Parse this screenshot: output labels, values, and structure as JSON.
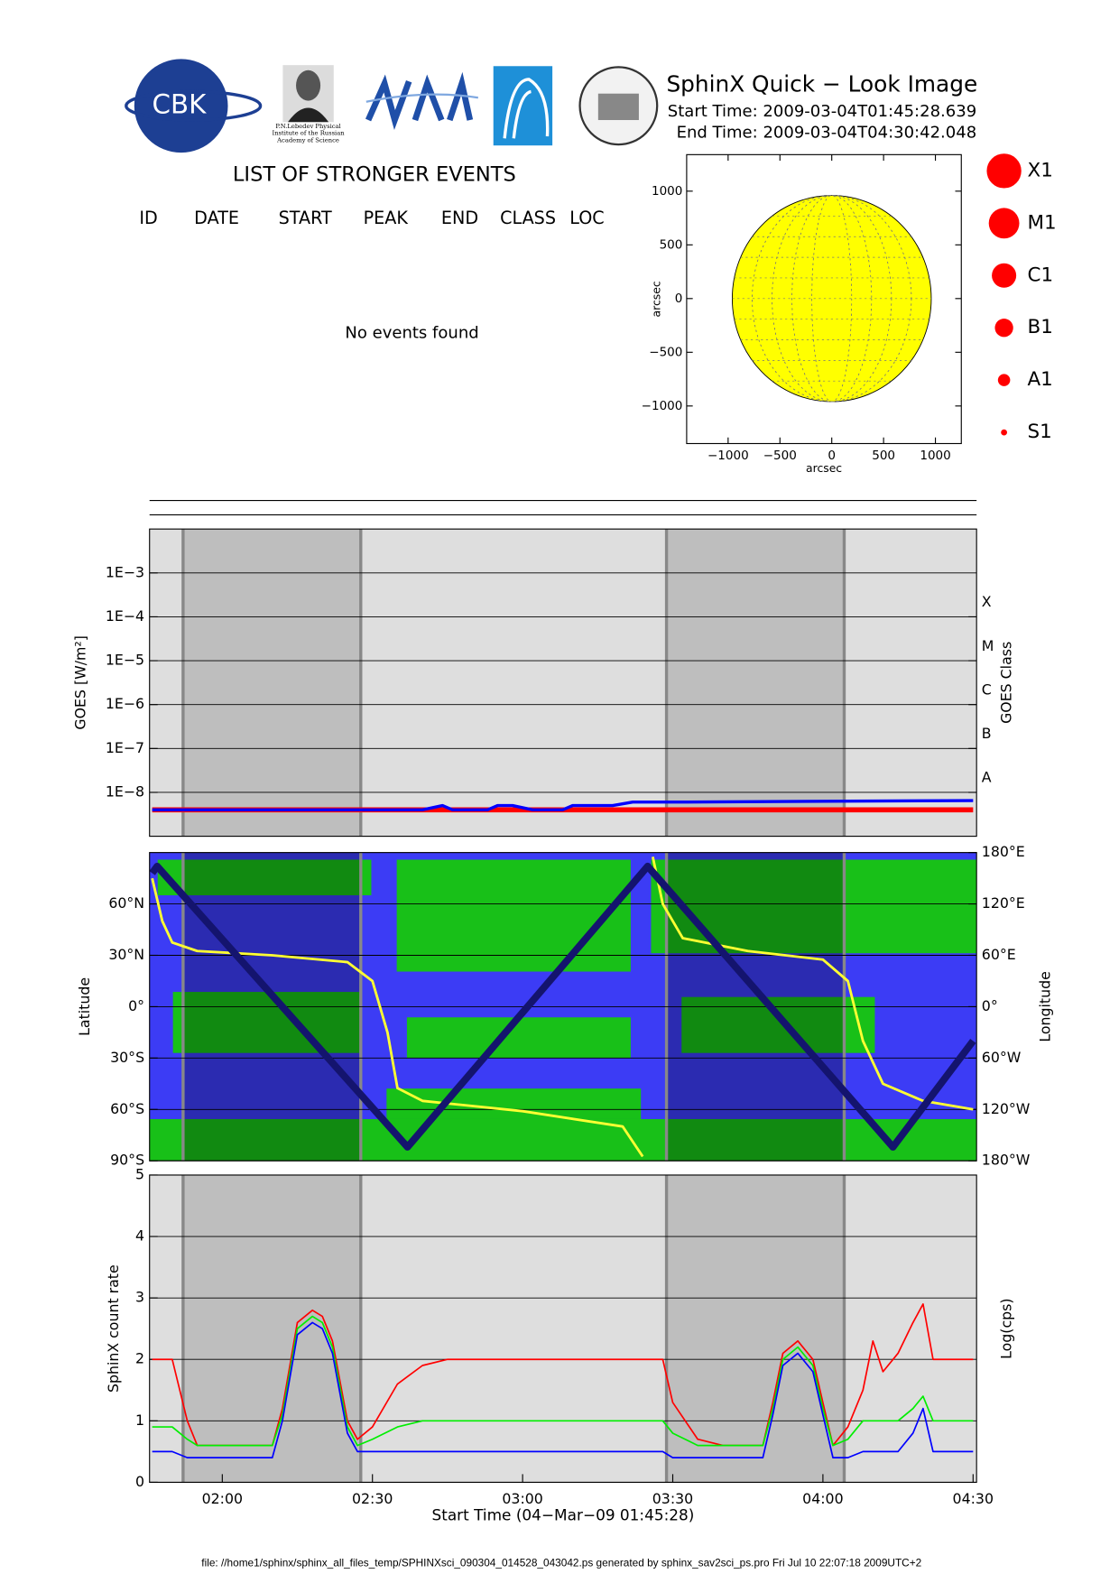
{
  "header": {
    "title": "SphinX Quick − Look Image",
    "start_time": "Start Time: 2009-03-04T01:45:28.639",
    "end_time": "End Time: 2009-03-04T04:30:42.048",
    "logo_text": "CBK",
    "institute_caption": [
      "P.N.Lebedev Physical",
      "Institute of the Russian",
      "Academy of Science"
    ]
  },
  "events": {
    "title": "LIST OF STRONGER EVENTS",
    "columns": [
      "ID",
      "DATE",
      "START",
      "PEAK",
      "END",
      "CLASS",
      "LOC"
    ],
    "message": "No events found"
  },
  "footer": "file: //home1/sphinx/sphinx_all_files_temp/SPHINXsci_090304_014528_043042.ps generated by sphinx_sav2sci_ps.pro Fri Jul 10 22:07:18 2009UTC+2",
  "chart_data": [
    {
      "type": "disk",
      "xlabel": "arcsec",
      "ylabel": "arcsec",
      "xlim": [
        -1400,
        1250
      ],
      "ylim": [
        -1350,
        1340
      ],
      "xticks": [
        {
          "value": -1000,
          "label": "−1000"
        },
        {
          "value": -500,
          "label": "−500"
        },
        0,
        500,
        1000
      ],
      "yticks": [
        {
          "value": -1000,
          "label": "−1000"
        },
        {
          "value": -500,
          "label": "−500"
        },
        0,
        500,
        1000
      ],
      "disk_radius": 960,
      "color": "#ffff00",
      "size_legend": {
        "labels": [
          "X1",
          "M1",
          "C1",
          "B1",
          "A1",
          "S1"
        ],
        "color": "#ff0000"
      }
    },
    {
      "type": "line",
      "log_y": true,
      "grid": true,
      "ylabel": "GOES [W/m²]",
      "y2label": "GOES Class",
      "xlim": [
        "01:45:28",
        "04:30:42"
      ],
      "ylim": [
        1e-09,
        0.01
      ],
      "yticks": [
        {
          "value": 0.001,
          "label": "1E−3"
        },
        {
          "value": 0.0001,
          "label": "1E−4"
        },
        {
          "value": 1e-05,
          "label": "1E−5"
        },
        {
          "value": 1e-06,
          "label": "1E−6"
        },
        {
          "value": 1e-07,
          "label": "1E−7"
        },
        {
          "value": 1e-08,
          "label": "1E−8"
        }
      ],
      "y2lim": [
        1e-09,
        0.01
      ],
      "y2ticks": [
        {
          "value": 1e-08,
          "label": "A"
        },
        {
          "value": 1e-07,
          "label": "B"
        },
        {
          "value": 1e-06,
          "label": "C"
        },
        {
          "value": 1e-05,
          "label": "M"
        },
        {
          "value": 0.0001,
          "label": "X"
        }
      ],
      "shaded_regions": [
        [
          "01:52:10",
          "02:27:40"
        ],
        [
          "03:28:45",
          "04:04:15"
        ]
      ],
      "series": [
        {
          "color": "#ff0000",
          "x": [
            "01:46",
            "02:30",
            "03:00",
            "03:30",
            "04:00",
            "04:30"
          ],
          "values": [
            4e-09,
            4e-09,
            4e-09,
            4e-09,
            4e-09,
            4e-09
          ]
        },
        {
          "color": "#0000ff",
          "x": [
            "01:46",
            "02:40",
            "02:44",
            "02:46",
            "02:53",
            "02:55",
            "02:58",
            "03:02",
            "03:08",
            "03:10",
            "03:18",
            "03:22",
            "03:30",
            "04:30"
          ],
          "values": [
            4e-09,
            4e-09,
            5e-09,
            4e-09,
            4e-09,
            5e-09,
            5e-09,
            4e-09,
            4e-09,
            5e-09,
            5e-09,
            6e-09,
            6e-09,
            6.5e-09
          ]
        }
      ]
    },
    {
      "type": "line",
      "grid": true,
      "ylabel": "Latitude",
      "y2label": "Longitude",
      "xlim": [
        "01:45:28",
        "04:30:42"
      ],
      "ylim": [
        -90,
        90
      ],
      "yticks": [
        {
          "value": -90,
          "label": "90°S"
        },
        {
          "value": -60,
          "label": "60°S"
        },
        {
          "value": -30,
          "label": "30°S"
        },
        {
          "value": 0,
          "label": "0°"
        },
        {
          "value": 30,
          "label": "30°N"
        },
        {
          "value": 60,
          "label": "60°N"
        }
      ],
      "y2lim": [
        -180,
        180
      ],
      "y2ticks": [
        {
          "value": -180,
          "label": "180°W"
        },
        {
          "value": -120,
          "label": "120°W"
        },
        {
          "value": -60,
          "label": "60°W"
        },
        {
          "value": 0,
          "label": "0°"
        },
        {
          "value": 60,
          "label": "60°E"
        },
        {
          "value": 120,
          "label": "120°E"
        },
        {
          "value": 180,
          "label": "180°E"
        }
      ],
      "shaded_regions": [
        [
          "01:52:10",
          "02:27:40"
        ],
        [
          "03:28:45",
          "04:04:15"
        ]
      ],
      "series": [
        {
          "color": "#ffff33",
          "axis": "y2",
          "x": [
            "01:46",
            "01:48",
            "01:50",
            "01:55",
            "02:10",
            "02:25",
            "02:30",
            "02:33",
            "02:35",
            "02:40",
            "03:00",
            "03:20",
            "03:24",
            "03:25",
            "03:26",
            "03:28",
            "03:32",
            "03:45",
            "04:00",
            "04:05",
            "04:08",
            "04:12",
            "04:20",
            "04:30"
          ],
          "values": [
            150,
            100,
            75,
            65,
            60,
            52,
            30,
            -30,
            -95,
            -110,
            -122,
            -140,
            -175,
            null,
            175,
            120,
            80,
            65,
            55,
            30,
            -40,
            -90,
            -110,
            -120
          ]
        },
        {
          "color": "#14146e",
          "x": [
            "01:46",
            "01:47",
            "02:37",
            "03:25",
            "04:14",
            "04:30"
          ],
          "values": [
            78,
            82,
            -82,
            82,
            -82,
            -20
          ]
        }
      ]
    },
    {
      "type": "line",
      "grid": true,
      "ylabel": "SphinX count rate",
      "y2label": "Log(cps)",
      "xlabel": "Start Time (04−Mar−09 01:45:28)",
      "xlim": [
        "01:45:28",
        "04:30:42"
      ],
      "xticks": [
        "02:00",
        "02:30",
        "03:00",
        "03:30",
        "04:00",
        "04:30"
      ],
      "ylim": [
        0,
        5
      ],
      "yticks": [
        0,
        1,
        2,
        3,
        4,
        5
      ],
      "shaded_regions": [
        [
          "01:52:10",
          "02:27:40"
        ],
        [
          "03:28:45",
          "04:04:15"
        ]
      ],
      "series": [
        {
          "color": "#ff0000",
          "x": [
            "01:46",
            "01:50",
            "01:53",
            "01:55",
            "02:00",
            "02:05",
            "02:08",
            "02:10",
            "02:12",
            "02:15",
            "02:18",
            "02:20",
            "02:22",
            "02:25",
            "02:27",
            "02:30",
            "02:35",
            "02:40",
            "02:45",
            "02:50",
            "03:00",
            "03:10",
            "03:20",
            "03:25",
            "03:28",
            "03:30",
            "03:35",
            "03:40",
            "03:45",
            "03:48",
            "03:50",
            "03:52",
            "03:55",
            "03:58",
            "04:00",
            "04:02",
            "04:05",
            "04:08",
            "04:10",
            "04:12",
            "04:15",
            "04:18",
            "04:20",
            "04:22",
            "04:25",
            "04:30"
          ],
          "values": [
            2.0,
            2.0,
            1.0,
            0.6,
            0.6,
            0.6,
            0.6,
            0.6,
            1.2,
            2.6,
            2.8,
            2.7,
            2.3,
            1.0,
            0.7,
            0.9,
            1.6,
            1.9,
            2.0,
            2.0,
            2.0,
            2.0,
            2.0,
            2.0,
            2.0,
            1.3,
            0.7,
            0.6,
            0.6,
            0.6,
            1.3,
            2.1,
            2.3,
            2.0,
            1.3,
            0.6,
            0.9,
            1.5,
            2.3,
            1.8,
            2.1,
            2.6,
            2.9,
            2.0,
            2.0,
            2.0
          ]
        },
        {
          "color": "#00ee00",
          "x": [
            "01:46",
            "01:50",
            "01:53",
            "01:55",
            "02:00",
            "02:05",
            "02:08",
            "02:10",
            "02:12",
            "02:15",
            "02:18",
            "02:20",
            "02:22",
            "02:25",
            "02:27",
            "02:30",
            "02:35",
            "02:40",
            "02:45",
            "02:50",
            "03:00",
            "03:10",
            "03:20",
            "03:25",
            "03:28",
            "03:30",
            "03:35",
            "03:40",
            "03:45",
            "03:48",
            "03:50",
            "03:52",
            "03:55",
            "03:58",
            "04:00",
            "04:02",
            "04:05",
            "04:08",
            "04:10",
            "04:12",
            "04:15",
            "04:18",
            "04:20",
            "04:22",
            "04:25",
            "04:30"
          ],
          "values": [
            0.9,
            0.9,
            0.7,
            0.6,
            0.6,
            0.6,
            0.6,
            0.6,
            1.1,
            2.5,
            2.7,
            2.6,
            2.2,
            0.9,
            0.6,
            0.7,
            0.9,
            1.0,
            1.0,
            1.0,
            1.0,
            1.0,
            1.0,
            1.0,
            1.0,
            0.8,
            0.6,
            0.6,
            0.6,
            0.6,
            1.2,
            2.0,
            2.2,
            1.9,
            1.2,
            0.6,
            0.7,
            1.0,
            1.0,
            1.0,
            1.0,
            1.2,
            1.4,
            1.0,
            1.0,
            1.0
          ]
        },
        {
          "color": "#0000ff",
          "x": [
            "01:46",
            "01:50",
            "01:53",
            "01:55",
            "02:00",
            "02:05",
            "02:08",
            "02:10",
            "02:12",
            "02:15",
            "02:18",
            "02:20",
            "02:22",
            "02:25",
            "02:27",
            "02:30",
            "02:35",
            "02:40",
            "02:45",
            "02:50",
            "03:00",
            "03:10",
            "03:20",
            "03:25",
            "03:28",
            "03:30",
            "03:35",
            "03:40",
            "03:45",
            "03:48",
            "03:50",
            "03:52",
            "03:55",
            "03:58",
            "04:00",
            "04:02",
            "04:05",
            "04:08",
            "04:10",
            "04:12",
            "04:15",
            "04:18",
            "04:20",
            "04:22",
            "04:25",
            "04:30"
          ],
          "values": [
            0.5,
            0.5,
            0.4,
            0.4,
            0.4,
            0.4,
            0.4,
            0.4,
            1.0,
            2.4,
            2.6,
            2.5,
            2.1,
            0.8,
            0.5,
            0.5,
            0.5,
            0.5,
            0.5,
            0.5,
            0.5,
            0.5,
            0.5,
            0.5,
            0.5,
            0.4,
            0.4,
            0.4,
            0.4,
            0.4,
            1.1,
            1.9,
            2.1,
            1.8,
            1.1,
            0.4,
            0.4,
            0.5,
            0.5,
            0.5,
            0.5,
            0.8,
            1.2,
            0.5,
            0.5,
            0.5
          ]
        }
      ]
    }
  ]
}
